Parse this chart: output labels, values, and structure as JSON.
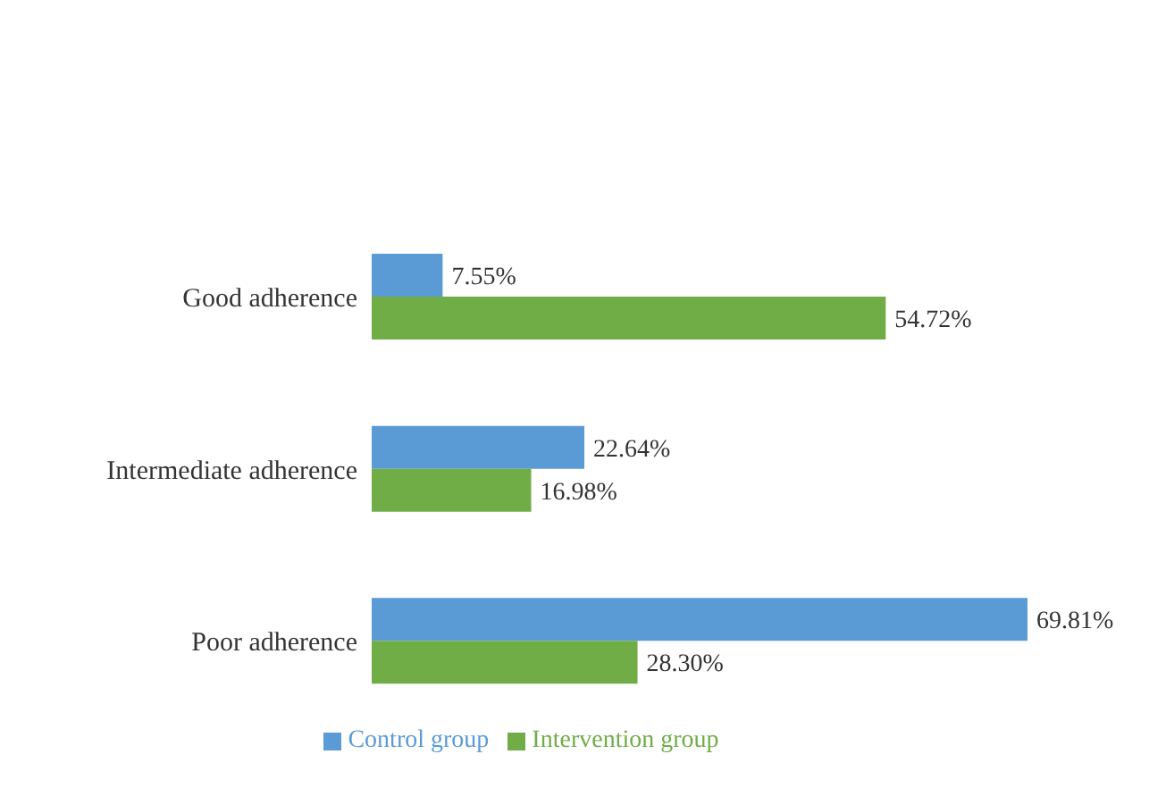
{
  "chart_data": {
    "type": "bar",
    "orientation": "horizontal",
    "categories": [
      "Good adherence",
      "Intermediate adherence",
      "Poor adherence"
    ],
    "series": [
      {
        "name": "Control group",
        "color": "#5b9bd5",
        "values": [
          7.55,
          22.64,
          69.81
        ],
        "value_labels": [
          "7.55%",
          "22.64%",
          "69.81%"
        ]
      },
      {
        "name": "Intervention group",
        "color": "#70ad47",
        "values": [
          54.72,
          16.98,
          28.3
        ],
        "value_labels": [
          "54.72%",
          "16.98%",
          "28.30%"
        ]
      }
    ],
    "tick_labels": "y",
    "legend": "bottom",
    "grid": false
  }
}
